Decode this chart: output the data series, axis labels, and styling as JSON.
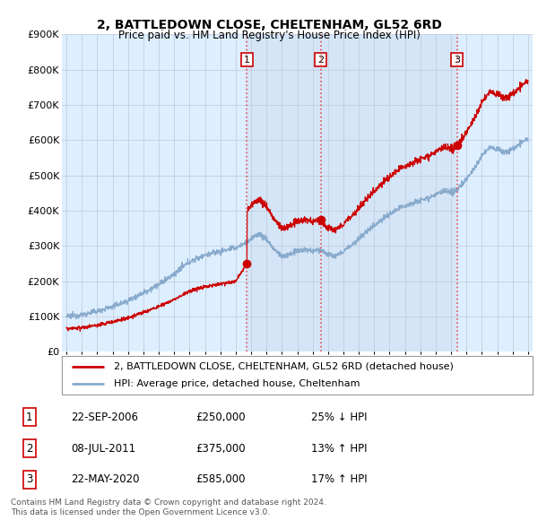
{
  "title": "2, BATTLEDOWN CLOSE, CHELTENHAM, GL52 6RD",
  "subtitle": "Price paid vs. HM Land Registry's House Price Index (HPI)",
  "sale_dates_float": [
    2006.728,
    2011.517,
    2020.388
  ],
  "sale_prices": [
    250000,
    375000,
    585000
  ],
  "sale_labels": [
    "1",
    "2",
    "3"
  ],
  "sale_info": [
    {
      "date": "22-SEP-2006",
      "price": "£250,000",
      "pct": "25%",
      "dir": "↓"
    },
    {
      "date": "08-JUL-2011",
      "price": "£375,000",
      "pct": "13%",
      "dir": "↑"
    },
    {
      "date": "22-MAY-2020",
      "price": "£585,000",
      "pct": "17%",
      "dir": "↑"
    }
  ],
  "property_line_color": "#cc0000",
  "hpi_line_color": "#88aacc",
  "background_color": "#ddeeff",
  "plot_bg_color": "#ddeeff",
  "vline_color": "#dd4444",
  "grid_color": "#c0c8d8",
  "legend_label_property": "2, BATTLEDOWN CLOSE, CHELTENHAM, GL52 6RD (detached house)",
  "legend_label_hpi": "HPI: Average price, detached house, Cheltenham",
  "footer": "Contains HM Land Registry data © Crown copyright and database right 2024.\nThis data is licensed under the Open Government Licence v3.0.",
  "ylim": [
    0,
    900000
  ],
  "yticks": [
    0,
    100000,
    200000,
    300000,
    400000,
    500000,
    600000,
    700000,
    800000,
    900000
  ],
  "ytick_labels": [
    "£0",
    "£100K",
    "£200K",
    "£300K",
    "£400K",
    "£500K",
    "£600K",
    "£700K",
    "£800K",
    "£900K"
  ],
  "xlim": [
    1994.7,
    2025.3
  ],
  "xticks": [
    1995,
    1996,
    1997,
    1998,
    1999,
    2000,
    2001,
    2002,
    2003,
    2004,
    2005,
    2006,
    2007,
    2008,
    2009,
    2010,
    2011,
    2012,
    2013,
    2014,
    2015,
    2016,
    2017,
    2018,
    2019,
    2020,
    2021,
    2022,
    2023,
    2024,
    2025
  ]
}
